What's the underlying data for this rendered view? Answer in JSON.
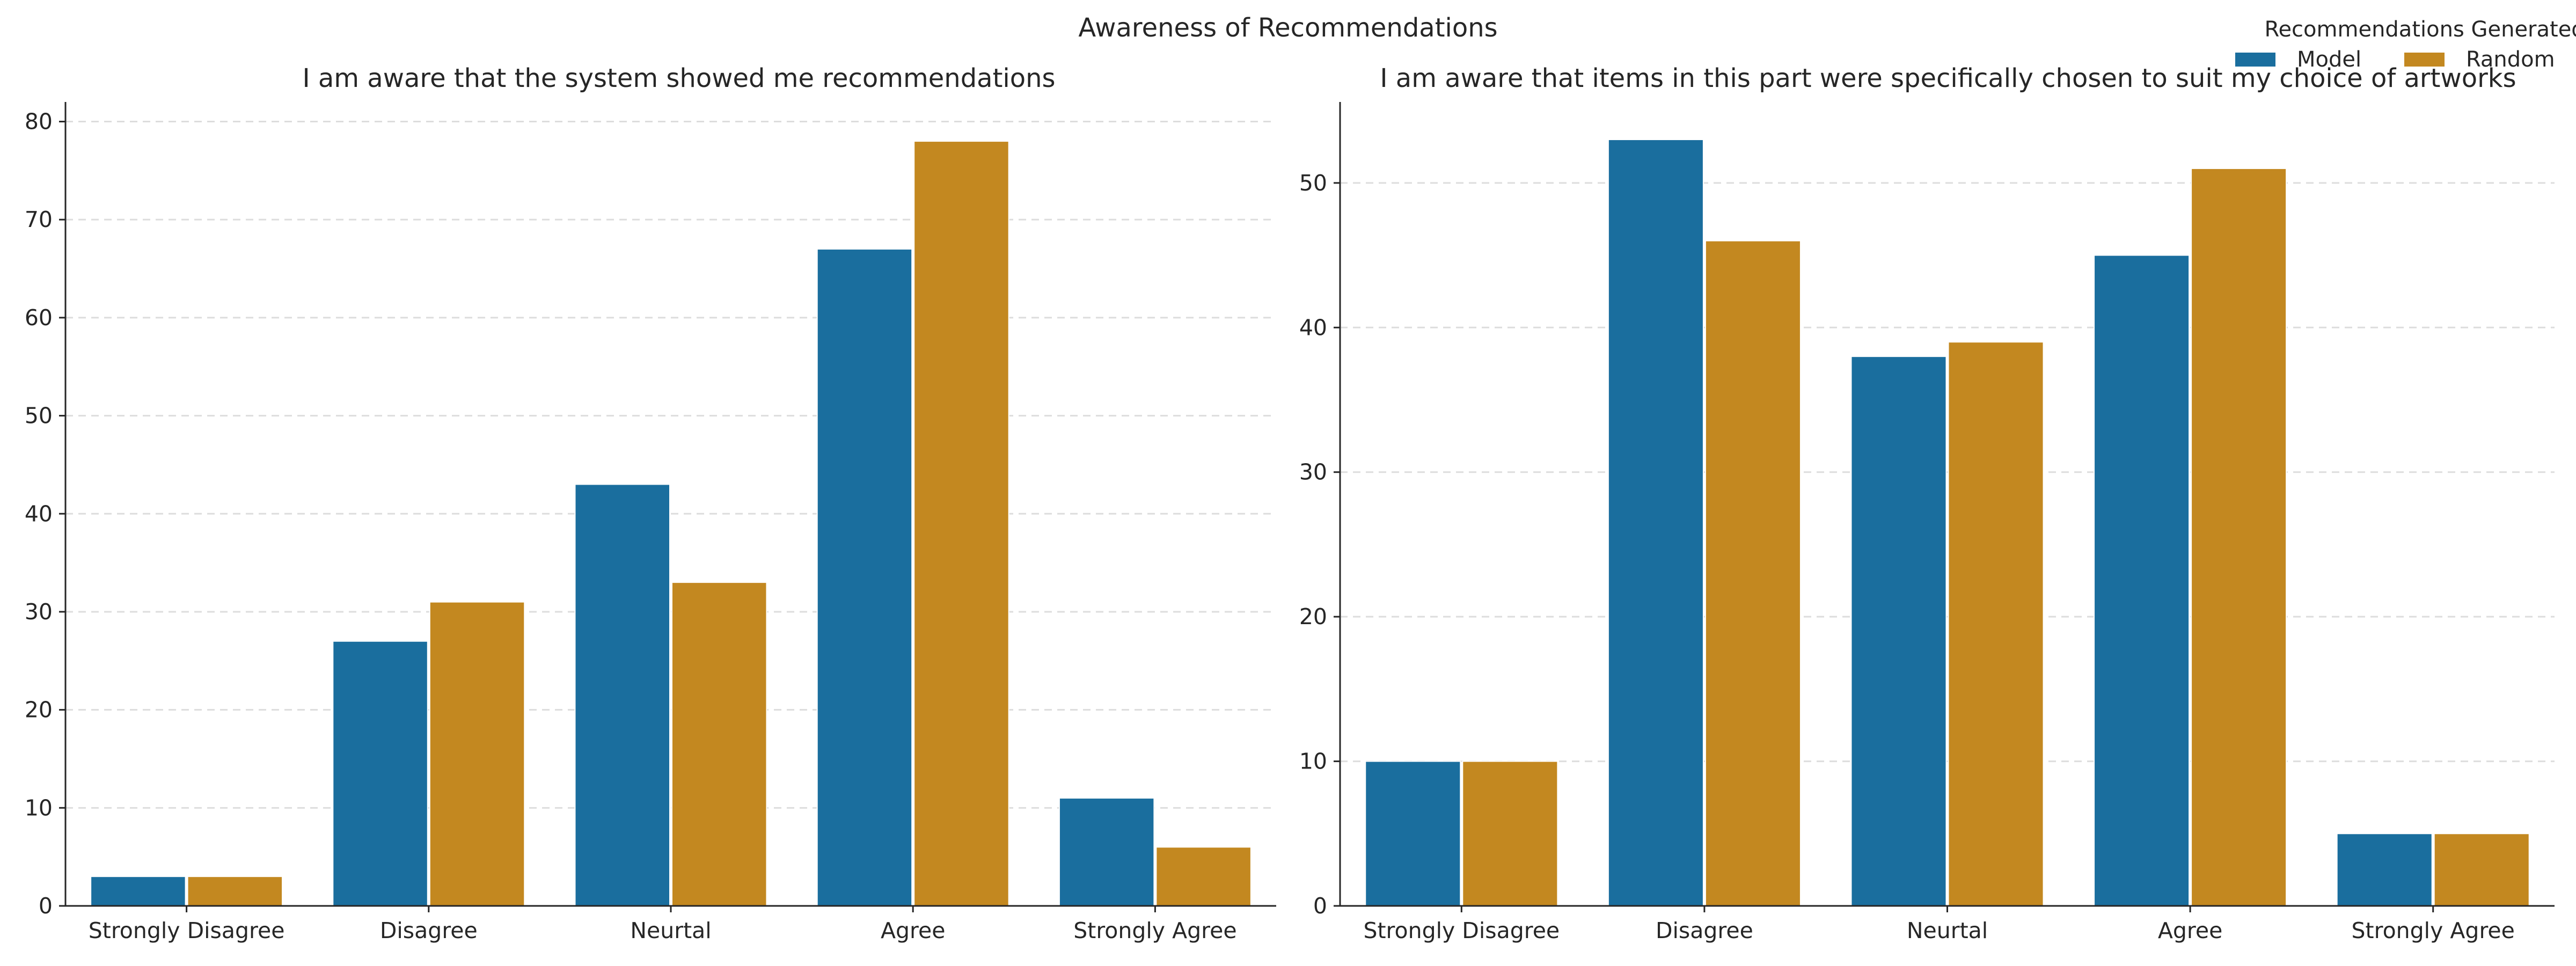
{
  "figure": {
    "title": "Awareness of Recommendations"
  },
  "legend": {
    "title": "Recommendations Generated By",
    "placement": "top-right",
    "items": [
      {
        "label": "Model",
        "color": "#1a6e9e"
      },
      {
        "label": "Random",
        "color": "#c38820"
      }
    ]
  },
  "chart_data": [
    {
      "type": "bar",
      "title": "I am aware that the system showed me recommendations",
      "xlabel": "",
      "ylabel": "",
      "categories": [
        "Strongly Disagree",
        "Disagree",
        "Neurtal",
        "Agree",
        "Strongly Agree"
      ],
      "series": [
        {
          "name": "Model",
          "values": [
            3,
            27,
            43,
            67,
            11
          ]
        },
        {
          "name": "Random",
          "values": [
            3,
            31,
            33,
            78,
            6
          ]
        }
      ],
      "ylim": [
        0,
        82
      ],
      "yticks": [
        0,
        10,
        20,
        30,
        40,
        50,
        60,
        70,
        80
      ],
      "grid": "horizontal dashed"
    },
    {
      "type": "bar",
      "title": "I am aware that items in this part were specifically chosen to suit my choice of artworks",
      "xlabel": "",
      "ylabel": "",
      "categories": [
        "Strongly Disagree",
        "Disagree",
        "Neurtal",
        "Agree",
        "Strongly Agree"
      ],
      "series": [
        {
          "name": "Model",
          "values": [
            10,
            53,
            38,
            45,
            5
          ]
        },
        {
          "name": "Random",
          "values": [
            10,
            46,
            39,
            51,
            5
          ]
        }
      ],
      "ylim": [
        0,
        55.6
      ],
      "yticks": [
        0,
        10,
        20,
        30,
        40,
        50
      ],
      "grid": "horizontal dashed"
    }
  ]
}
